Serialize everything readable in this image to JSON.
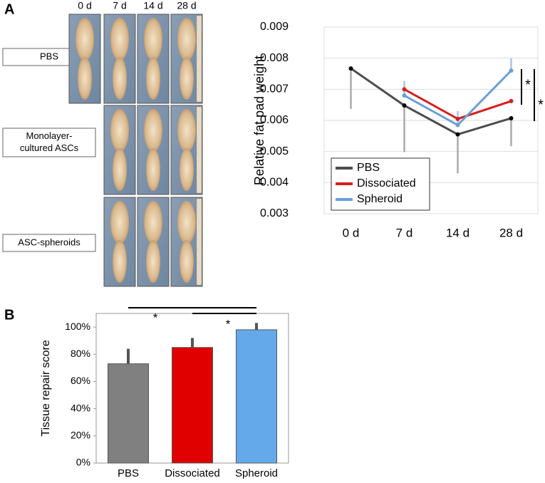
{
  "figure": {
    "panel_labels": [
      "A",
      "B"
    ],
    "photo_columns": [
      "0 d",
      "7 d",
      "14 d",
      "28 d"
    ],
    "photo_rows": [
      [
        "PBS"
      ],
      [
        "Monolayer-",
        "cultured ASCs"
      ],
      [
        "ASC-spheroids"
      ]
    ]
  },
  "chart_data": [
    {
      "type": "line",
      "ylabel": "Relative fat pad weight",
      "categories": [
        "0 d",
        "7 d",
        "14 d",
        "28 d"
      ],
      "ylim": [
        0.003,
        0.009
      ],
      "yticks": [
        0.003,
        0.004,
        0.005,
        0.006,
        0.007,
        0.008,
        0.009
      ],
      "grid": true,
      "legend": "lower left",
      "series": [
        {
          "name": "PBS",
          "color": "#4d4d4d",
          "values": [
            0.00767,
            0.00648,
            0.00555,
            0.00607
          ],
          "errors": [
            0.0013,
            0.0015,
            0.00125,
            0.0009
          ],
          "error_direction": "down"
        },
        {
          "name": "Dissociated",
          "color": "#d42020",
          "values": [
            null,
            0.007,
            0.00605,
            0.00662
          ]
        },
        {
          "name": "Spheroid",
          "color": "#6a9fd8",
          "values": [
            null,
            0.0068,
            0.00585,
            0.0076
          ],
          "errors": [
            null,
            0.00047,
            0.00045,
            0.0004
          ],
          "error_direction": "up"
        }
      ],
      "annotations": [
        "*",
        "*"
      ]
    },
    {
      "type": "bar",
      "ylabel": "Tissue repair score",
      "categories": [
        "PBS",
        "Dissociated",
        "Spheroid"
      ],
      "values": [
        73,
        85,
        98
      ],
      "errors": [
        11,
        7,
        5
      ],
      "colors": [
        "#808080",
        "#e00000",
        "#64aaeb"
      ],
      "ylim": [
        0,
        110
      ],
      "yticks": [
        {
          "value": 0,
          "label": "0%"
        },
        {
          "value": 20,
          "label": "20%"
        },
        {
          "value": 40,
          "label": "40%"
        },
        {
          "value": 60,
          "label": "60%"
        },
        {
          "value": 80,
          "label": "80%"
        },
        {
          "value": 100,
          "label": "100%"
        }
      ],
      "grid": false,
      "annotations": [
        "*",
        "*"
      ]
    }
  ]
}
